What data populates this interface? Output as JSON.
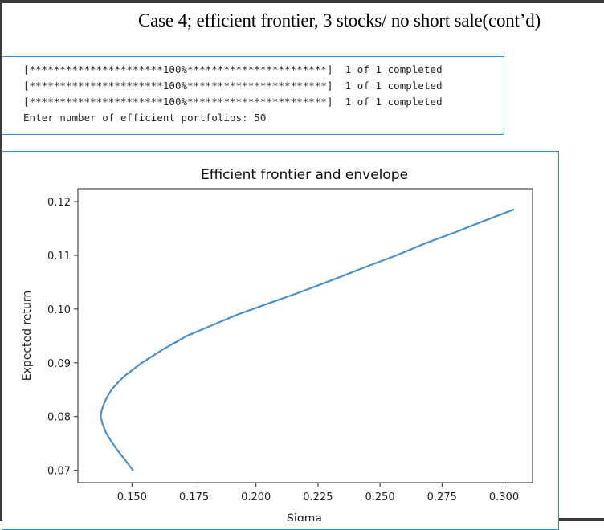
{
  "slide": {
    "title": "Case 4; efficient frontier, 3 stocks/ no short sale(cont’d)"
  },
  "console": {
    "lines": [
      "[**********************100%***********************]  1 of 1 completed",
      "[**********************100%***********************]  1 of 1 completed",
      "[**********************100%***********************]  1 of 1 completed",
      "Enter number of efficient portfolios: 50"
    ]
  },
  "chart_data": {
    "type": "line",
    "title": "Efficient frontier and envelope",
    "xlabel": "Sigma",
    "ylabel": "Expected return",
    "xlim": [
      0.1282,
      0.3115
    ],
    "ylim": [
      0.0677,
      0.1224
    ],
    "xticks": [
      "0.150",
      "0.175",
      "0.200",
      "0.225",
      "0.250",
      "0.275",
      "0.300"
    ],
    "yticks": [
      "0.07",
      "0.08",
      "0.09",
      "0.10",
      "0.11",
      "0.12"
    ],
    "grid": false,
    "line_color": "#4a8fc7",
    "series": [
      {
        "x": [
          0.1504,
          0.1475,
          0.1445,
          0.1419,
          0.1395,
          0.138,
          0.1374,
          0.1378,
          0.1388,
          0.1401,
          0.1418,
          0.1441,
          0.1469,
          0.1503,
          0.154,
          0.1581,
          0.1625,
          0.1672,
          0.1721,
          0.1823,
          0.1926,
          0.2029,
          0.2181,
          0.2324,
          0.2451,
          0.2566,
          0.2686,
          0.2798,
          0.2914,
          0.3038
        ],
        "y": [
          0.07,
          0.0718,
          0.0735,
          0.0752,
          0.077,
          0.0788,
          0.08,
          0.0812,
          0.0825,
          0.0837,
          0.085,
          0.0862,
          0.0875,
          0.0887,
          0.09,
          0.0912,
          0.0925,
          0.0937,
          0.095,
          0.097,
          0.099,
          0.1007,
          0.1032,
          0.1057,
          0.108,
          0.11,
          0.1123,
          0.1142,
          0.1163,
          0.1185
        ]
      }
    ]
  }
}
